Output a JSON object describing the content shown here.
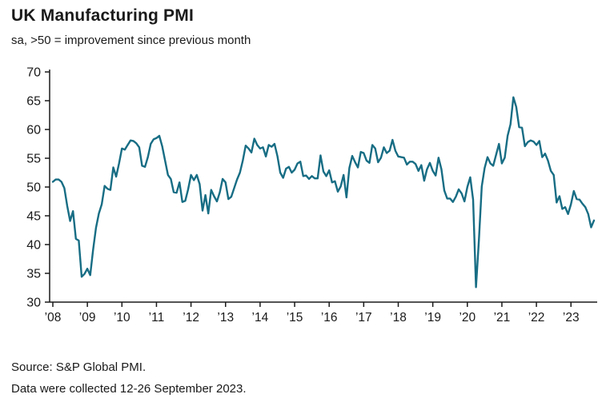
{
  "header": {
    "title": "UK Manufacturing PMI",
    "subtitle": "sa, >50 = improvement since previous month"
  },
  "footer": {
    "source": "Source: S&P Global PMI.",
    "collection": "Data were collected 12-26 September 2023."
  },
  "colors": {
    "line": "#176d84",
    "axis": "#1a1a1a",
    "text": "#1a1a1a",
    "background": "#ffffff"
  },
  "chart_data": {
    "type": "line",
    "title": "UK Manufacturing PMI",
    "subtitle": "sa, >50 = improvement since previous month",
    "series_name": "UK Manufacturing PMI (seasonally adjusted)",
    "frequency": "monthly",
    "start": "2008-01",
    "end": "2023-09",
    "ylim": [
      30,
      70
    ],
    "y_ticks": [
      30,
      35,
      40,
      45,
      50,
      55,
      60,
      65,
      70
    ],
    "x_tick_labels": [
      "’08",
      "’09",
      "’10",
      "’11",
      "’12",
      "’13",
      "’14",
      "’15",
      "’16",
      "’17",
      "’18",
      "’19",
      "’20",
      "’21",
      "’22",
      "’23"
    ],
    "grid": false,
    "legend": false,
    "values": [
      50.9,
      51.3,
      51.3,
      50.9,
      49.8,
      46.7,
      44.1,
      45.8,
      41.0,
      40.7,
      34.4,
      34.9,
      35.8,
      34.7,
      39.1,
      42.9,
      45.4,
      47.0,
      50.2,
      49.7,
      49.5,
      53.4,
      51.8,
      54.1,
      56.7,
      56.5,
      57.3,
      58.1,
      58.0,
      57.6,
      56.9,
      53.7,
      53.5,
      55.2,
      57.5,
      58.3,
      58.5,
      58.9,
      57.1,
      54.6,
      52.1,
      51.4,
      49.1,
      49.0,
      50.8,
      47.4,
      47.6,
      49.6,
      52.1,
      51.2,
      52.1,
      50.5,
      45.9,
      48.6,
      45.4,
      49.5,
      48.4,
      47.5,
      49.1,
      51.4,
      50.8,
      47.9,
      48.3,
      49.8,
      51.3,
      52.5,
      54.6,
      57.2,
      56.7,
      56.0,
      58.4,
      57.3,
      56.7,
      56.9,
      55.3,
      57.3,
      57.0,
      57.5,
      55.4,
      52.5,
      51.6,
      53.2,
      53.5,
      52.5,
      53.0,
      54.1,
      54.4,
      51.9,
      52.0,
      51.4,
      51.9,
      51.5,
      51.5,
      55.5,
      52.7,
      51.9,
      52.9,
      50.8,
      51.0,
      49.2,
      50.1,
      52.1,
      48.2,
      53.3,
      55.4,
      54.3,
      53.4,
      56.1,
      55.9,
      54.6,
      54.2,
      57.3,
      56.7,
      54.3,
      55.1,
      56.9,
      55.9,
      56.3,
      58.2,
      56.3,
      55.3,
      55.2,
      55.1,
      53.9,
      54.4,
      54.4,
      54.0,
      52.8,
      53.8,
      51.1,
      53.1,
      54.2,
      52.8,
      52.0,
      55.1,
      53.1,
      49.4,
      48.0,
      48.0,
      47.4,
      48.3,
      49.6,
      48.9,
      47.5,
      50.0,
      51.7,
      47.8,
      32.6,
      40.7,
      50.1,
      53.3,
      55.2,
      54.1,
      53.7,
      55.6,
      57.5,
      54.1,
      55.1,
      58.9,
      60.9,
      65.6,
      63.9,
      60.4,
      60.3,
      57.1,
      57.8,
      58.1,
      57.9,
      57.3,
      58.0,
      55.2,
      55.8,
      54.6,
      52.8,
      52.1,
      47.3,
      48.4,
      46.2,
      46.5,
      45.3,
      47.0,
      49.3,
      47.9,
      47.8,
      47.1,
      46.5,
      45.3,
      43.0,
      44.2
    ]
  }
}
